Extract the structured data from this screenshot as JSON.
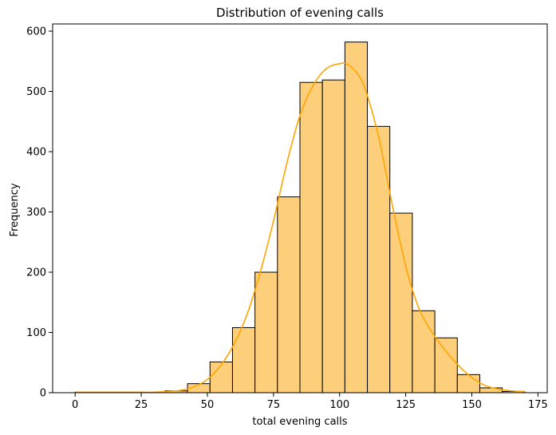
{
  "chart_data": {
    "type": "bar",
    "title": "Distribution of evening calls",
    "xlabel": "total evening calls",
    "ylabel": "Frequency",
    "xlim": [
      -8.5,
      178.5
    ],
    "ylim": [
      0,
      612
    ],
    "xticks": [
      0,
      25,
      50,
      75,
      100,
      125,
      150,
      175
    ],
    "yticks": [
      0,
      100,
      200,
      300,
      400,
      500,
      600
    ],
    "bin_edges": [
      0,
      8.5,
      17,
      25.5,
      34,
      42.5,
      51,
      59.5,
      68,
      76.5,
      85,
      93.5,
      102,
      110.5,
      119,
      127.5,
      136,
      144.5,
      153,
      161.5,
      170
    ],
    "values": [
      1,
      0,
      0,
      0,
      3,
      15,
      51,
      108,
      200,
      325,
      515,
      519,
      582,
      442,
      298,
      136,
      91,
      30,
      8,
      2
    ],
    "kde": {
      "x": [
        0,
        20,
        30,
        40,
        45,
        50,
        55,
        60,
        65,
        70,
        75,
        80,
        85,
        90,
        95,
        100,
        103,
        107,
        110,
        115,
        120,
        125,
        130,
        135,
        140,
        145,
        150,
        155,
        160,
        165,
        170
      ],
      "y": [
        1,
        1,
        1,
        4,
        10,
        22,
        45,
        80,
        130,
        200,
        285,
        380,
        460,
        510,
        538,
        546,
        545,
        528,
        500,
        420,
        310,
        210,
        140,
        100,
        70,
        45,
        25,
        12,
        6,
        3,
        2
      ]
    },
    "colors": {
      "bar_fill": "#fecf7b",
      "bar_edge": "#000000",
      "kde_line": "#ffa500"
    },
    "grid": false
  }
}
